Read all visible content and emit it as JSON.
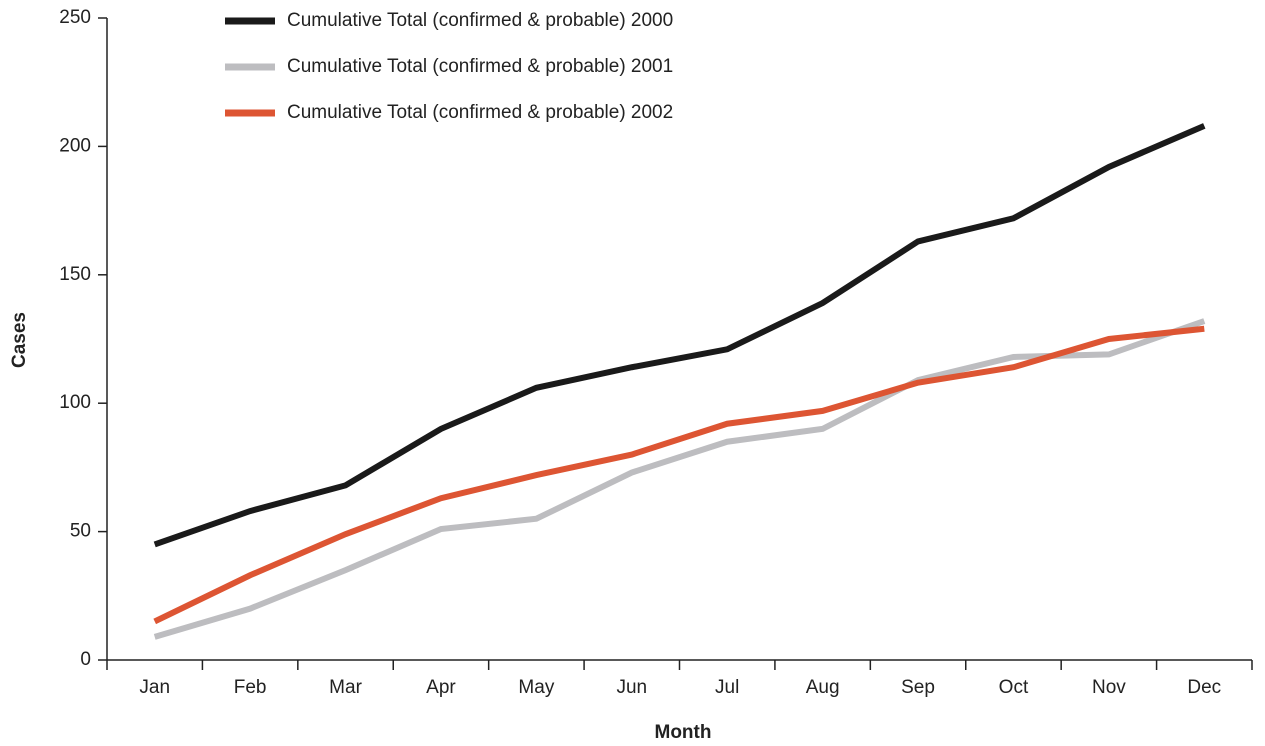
{
  "chart_data": {
    "type": "line",
    "x_label": "Month",
    "y_label": "Cases",
    "categories": [
      "Jan",
      "Feb",
      "Mar",
      "Apr",
      "May",
      "Jun",
      "Jul",
      "Aug",
      "Sep",
      "Oct",
      "Nov",
      "Dec"
    ],
    "series": [
      {
        "name": "Cumulative Total (confirmed & probable) 2000",
        "color": "#1a1a1a",
        "values": [
          45,
          58,
          68,
          90,
          106,
          114,
          121,
          139,
          163,
          172,
          192,
          208
        ]
      },
      {
        "name": "Cumulative Total (confirmed & probable) 2001",
        "color": "#bdbdc0",
        "values": [
          9,
          20,
          35,
          51,
          55,
          73,
          85,
          90,
          109,
          118,
          119,
          132
        ]
      },
      {
        "name": "Cumulative Total (confirmed & probable) 2002",
        "color": "#dd5533",
        "values": [
          15,
          33,
          49,
          63,
          72,
          80,
          92,
          97,
          108,
          114,
          125,
          129
        ]
      }
    ],
    "ylim": [
      0,
      250
    ],
    "yticks": [
      0,
      50,
      100,
      150,
      200,
      250
    ],
    "grid": false,
    "legend": "top"
  }
}
